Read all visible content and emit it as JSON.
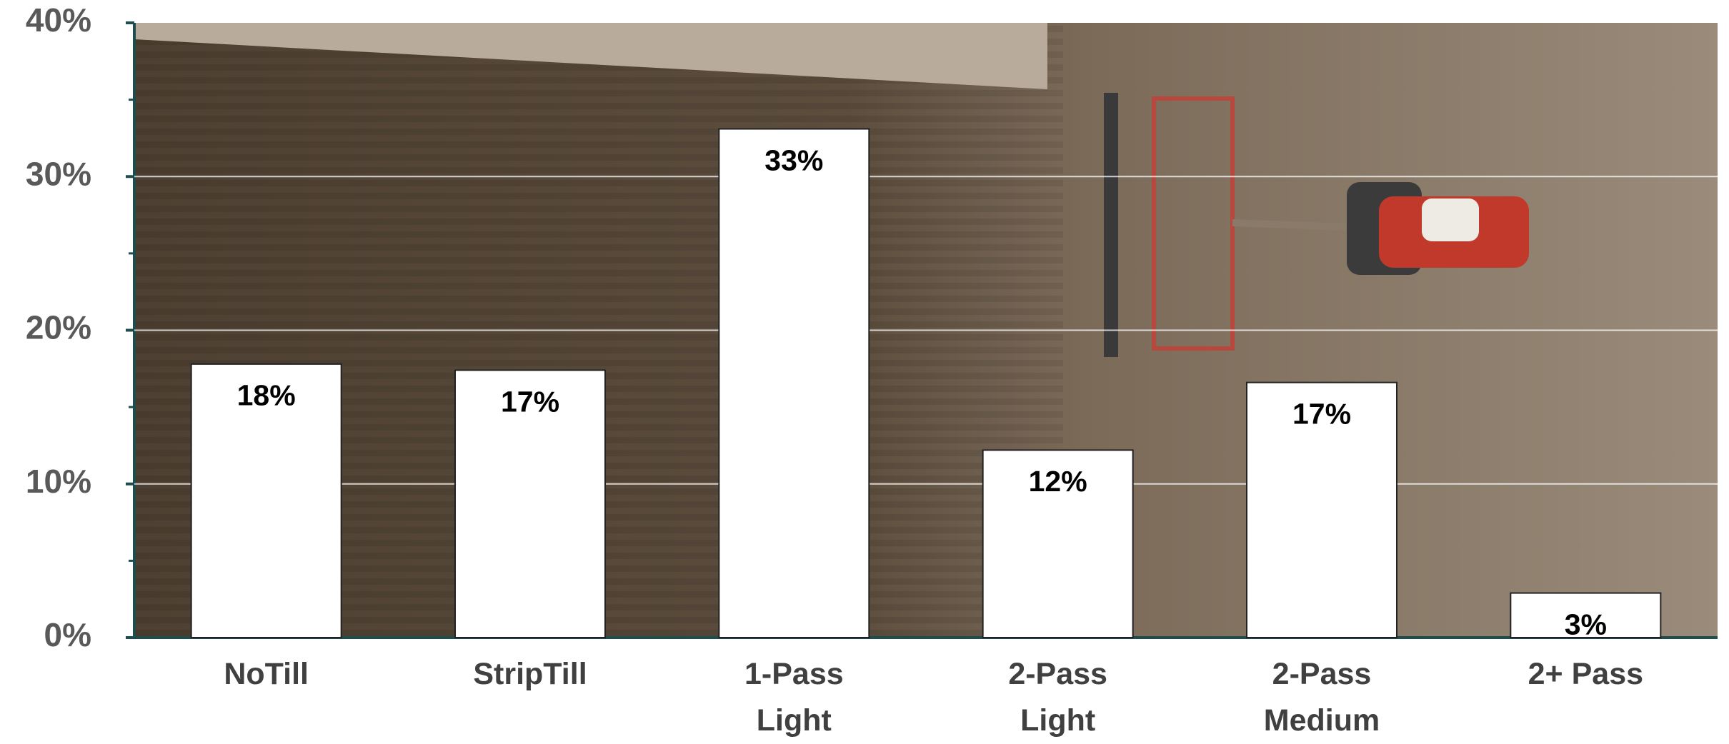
{
  "chart_data": {
    "type": "bar",
    "categories": [
      "NoTill",
      "StripTill",
      "1-Pass Light",
      "2-Pass Light",
      "2-Pass Medium",
      "2+ Pass"
    ],
    "values": [
      17.8,
      17.4,
      33.1,
      12.2,
      16.6,
      2.9
    ],
    "value_labels": [
      "18%",
      "17%",
      "33%",
      "12%",
      "17%",
      "3%"
    ],
    "color": "#ffffff",
    "ylim": [
      0,
      40
    ],
    "yticks": [
      {
        "value": 0,
        "label": "0%"
      },
      {
        "value": 10,
        "label": "10%"
      },
      {
        "value": 20,
        "label": "20%"
      },
      {
        "value": 30,
        "label": "30%"
      },
      {
        "value": 40,
        "label": "40%"
      }
    ],
    "minor_yticks": [
      5,
      15,
      25,
      35
    ],
    "grid": true
  }
}
